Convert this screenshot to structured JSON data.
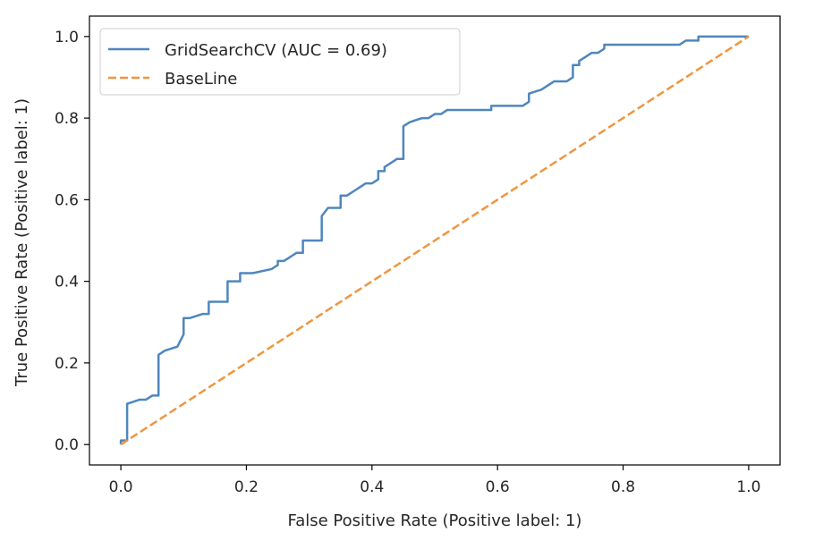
{
  "chart_data": {
    "type": "line",
    "title": "",
    "xlabel": "False Positive Rate (Positive label: 1)",
    "ylabel": "True Positive Rate (Positive label: 1)",
    "xlim": [
      -0.05,
      1.05
    ],
    "ylim": [
      -0.05,
      1.05
    ],
    "xticks": [
      0.0,
      0.2,
      0.4,
      0.6,
      0.8,
      1.0
    ],
    "yticks": [
      0.0,
      0.2,
      0.4,
      0.6,
      0.8,
      1.0
    ],
    "xtick_labels": [
      "0.0",
      "0.2",
      "0.4",
      "0.6",
      "0.8",
      "1.0"
    ],
    "ytick_labels": [
      "0.0",
      "0.2",
      "0.4",
      "0.6",
      "0.8",
      "1.0"
    ],
    "grid": false,
    "legend_position": "top-left",
    "series": [
      {
        "name": "GridSearchCV (AUC = 0.69)",
        "color": "#4f86bd",
        "style": "solid",
        "x": [
          0.0,
          0.0,
          0.01,
          0.01,
          0.02,
          0.03,
          0.04,
          0.05,
          0.06,
          0.06,
          0.07,
          0.09,
          0.1,
          0.1,
          0.11,
          0.13,
          0.14,
          0.14,
          0.17,
          0.17,
          0.19,
          0.19,
          0.21,
          0.24,
          0.25,
          0.25,
          0.26,
          0.27,
          0.28,
          0.29,
          0.29,
          0.32,
          0.32,
          0.33,
          0.35,
          0.35,
          0.36,
          0.37,
          0.38,
          0.39,
          0.4,
          0.41,
          0.41,
          0.42,
          0.42,
          0.43,
          0.44,
          0.45,
          0.45,
          0.46,
          0.47,
          0.48,
          0.49,
          0.5,
          0.51,
          0.52,
          0.55,
          0.59,
          0.59,
          0.64,
          0.65,
          0.65,
          0.67,
          0.69,
          0.7,
          0.71,
          0.72,
          0.72,
          0.73,
          0.73,
          0.74,
          0.75,
          0.76,
          0.77,
          0.77,
          0.89,
          0.9,
          0.91,
          0.92,
          0.92,
          0.98,
          1.0
        ],
        "y": [
          0.0,
          0.01,
          0.01,
          0.1,
          0.105,
          0.11,
          0.11,
          0.12,
          0.12,
          0.22,
          0.23,
          0.24,
          0.27,
          0.31,
          0.31,
          0.32,
          0.32,
          0.35,
          0.35,
          0.4,
          0.4,
          0.42,
          0.42,
          0.43,
          0.44,
          0.45,
          0.45,
          0.46,
          0.47,
          0.47,
          0.5,
          0.5,
          0.56,
          0.58,
          0.58,
          0.61,
          0.61,
          0.62,
          0.63,
          0.64,
          0.64,
          0.65,
          0.67,
          0.67,
          0.68,
          0.69,
          0.7,
          0.7,
          0.78,
          0.79,
          0.795,
          0.8,
          0.8,
          0.81,
          0.81,
          0.82,
          0.82,
          0.82,
          0.83,
          0.83,
          0.84,
          0.86,
          0.87,
          0.89,
          0.89,
          0.89,
          0.9,
          0.93,
          0.93,
          0.94,
          0.95,
          0.96,
          0.96,
          0.97,
          0.98,
          0.98,
          0.99,
          0.99,
          0.99,
          1.0,
          1.0,
          1.0
        ]
      },
      {
        "name": "BaseLine",
        "color": "#f0953f",
        "style": "dashed",
        "x": [
          0.0,
          1.0
        ],
        "y": [
          0.0,
          1.0
        ]
      }
    ]
  }
}
